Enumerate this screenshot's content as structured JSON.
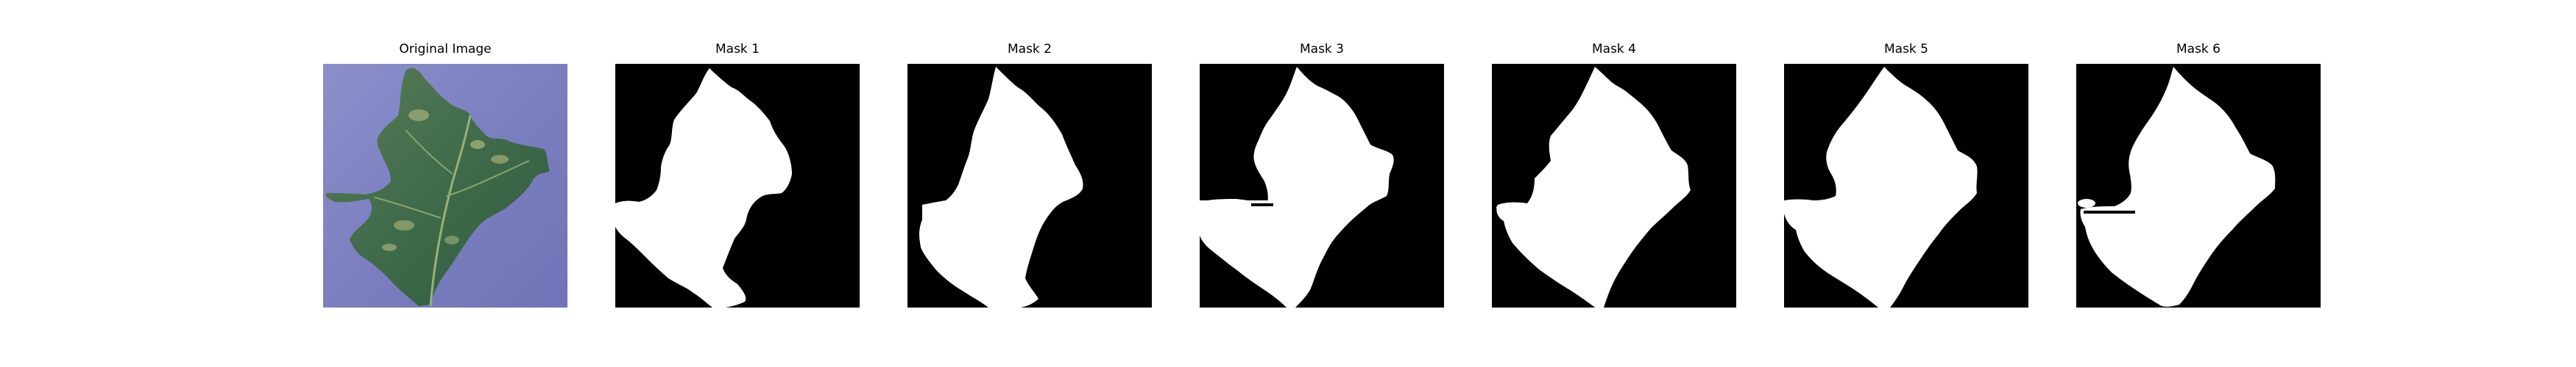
{
  "panels": [
    {
      "title": "Original Image"
    },
    {
      "title": "Mask 1"
    },
    {
      "title": "Mask 2"
    },
    {
      "title": "Mask 3"
    },
    {
      "title": "Mask 4"
    },
    {
      "title": "Mask 5"
    },
    {
      "title": "Mask 6"
    }
  ]
}
